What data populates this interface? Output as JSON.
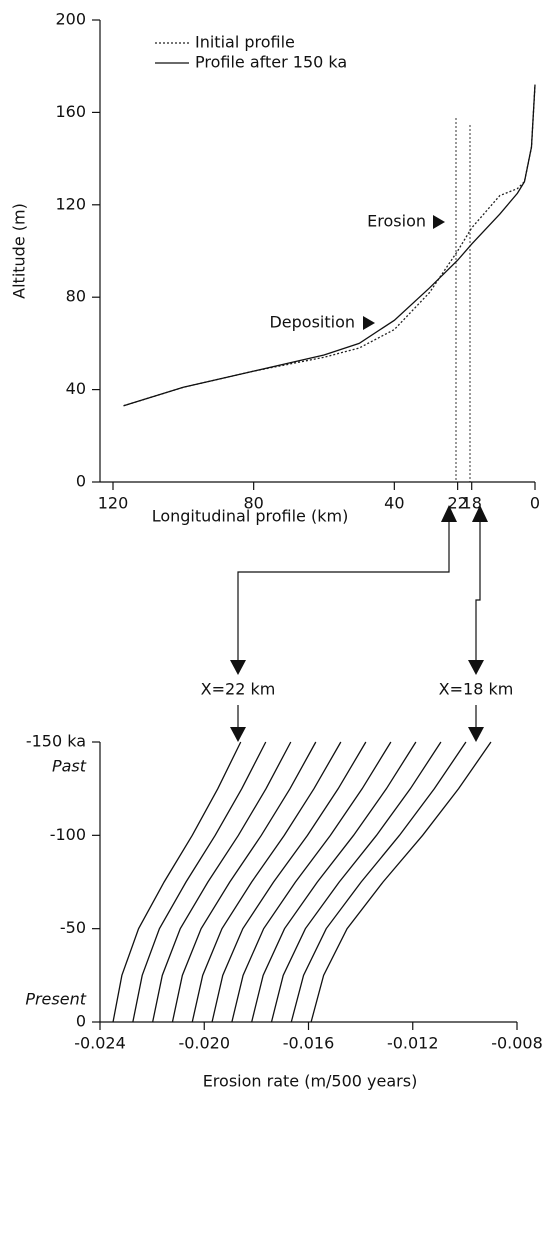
{
  "chart_data": [
    {
      "type": "line",
      "xlabel": "Longitudinal profile (km)",
      "ylabel": "Altitude (m)",
      "x": [
        117,
        100,
        80,
        60,
        50,
        40,
        30,
        22,
        18,
        10,
        5,
        3,
        1,
        0
      ],
      "series": [
        {
          "name": "Initial profile",
          "color": "#222",
          "linestyle": "dashed",
          "values": [
            33,
            41,
            48,
            54,
            58,
            66,
            82,
            100,
            110,
            124,
            127,
            130,
            145,
            172
          ]
        },
        {
          "name": "Profile after 150 ka",
          "color": "#111",
          "linestyle": "solid",
          "values": [
            33,
            41,
            48,
            55,
            60,
            70,
            84,
            96,
            103,
            116,
            125,
            130,
            145,
            172
          ]
        }
      ],
      "xlim": [
        120,
        0
      ],
      "xticks": [
        120,
        80,
        40,
        22,
        18,
        0
      ],
      "ylim": [
        0,
        200
      ],
      "yticks": [
        0,
        40,
        80,
        120,
        160,
        200
      ],
      "legend": "upper left",
      "annotations": [
        "Erosion",
        "Deposition"
      ]
    },
    {
      "type": "line",
      "orientation": "horizontal",
      "xlabel": "Erosion rate (m/500 years)",
      "y": [
        -150,
        -125,
        -100,
        -75,
        -50,
        -25,
        0
      ],
      "series": [
        {
          "color": "#111",
          "values": [
            -0.0186,
            -0.01948,
            -0.02046,
            -0.02154,
            -0.02252,
            -0.02316,
            -0.0235
          ]
        },
        {
          "color": "#111",
          "values": [
            -0.01764,
            -0.01856,
            -0.01958,
            -0.0207,
            -0.02172,
            -0.02238,
            -0.02274
          ]
        },
        {
          "color": "#111",
          "values": [
            -0.01668,
            -0.01763,
            -0.01869,
            -0.01986,
            -0.02092,
            -0.02161,
            -0.02198
          ]
        },
        {
          "color": "#111",
          "values": [
            -0.01572,
            -0.01671,
            -0.01781,
            -0.01902,
            -0.02012,
            -0.02084,
            -0.02122
          ]
        },
        {
          "color": "#111",
          "values": [
            -0.01476,
            -0.01579,
            -0.01693,
            -0.01818,
            -0.01932,
            -0.02006,
            -0.02046
          ]
        },
        {
          "color": "#111",
          "values": [
            -0.0138,
            -0.01486,
            -0.01604,
            -0.01734,
            -0.01852,
            -0.01929,
            -0.0197
          ]
        },
        {
          "color": "#111",
          "values": [
            -0.01284,
            -0.01394,
            -0.01516,
            -0.0165,
            -0.01772,
            -0.01851,
            -0.01894
          ]
        },
        {
          "color": "#111",
          "values": [
            -0.01188,
            -0.01301,
            -0.01427,
            -0.01566,
            -0.01692,
            -0.01774,
            -0.01818
          ]
        },
        {
          "color": "#111",
          "values": [
            -0.01092,
            -0.01209,
            -0.01339,
            -0.01482,
            -0.01612,
            -0.01697,
            -0.01742
          ]
        },
        {
          "color": "#111",
          "values": [
            -0.00996,
            -0.01117,
            -0.01251,
            -0.01398,
            -0.01532,
            -0.01619,
            -0.01666
          ]
        },
        {
          "color": "#111",
          "values": [
            -0.009,
            -0.01024,
            -0.01162,
            -0.01314,
            -0.01452,
            -0.01542,
            -0.0159
          ]
        }
      ],
      "xlim": [
        -0.024,
        -0.008
      ],
      "xticks": [
        -0.024,
        {
          "value": -0.02,
          "label": "-0.020"
        },
        -0.016,
        -0.012,
        -0.008
      ],
      "ylim": [
        0,
        -150
      ],
      "yticks": [
        {
          "value": -150,
          "label": "-150 ka"
        },
        -100,
        -50,
        0
      ],
      "annotations": [
        "X=22 km",
        "X=18 km",
        "Past",
        "Present"
      ]
    }
  ]
}
